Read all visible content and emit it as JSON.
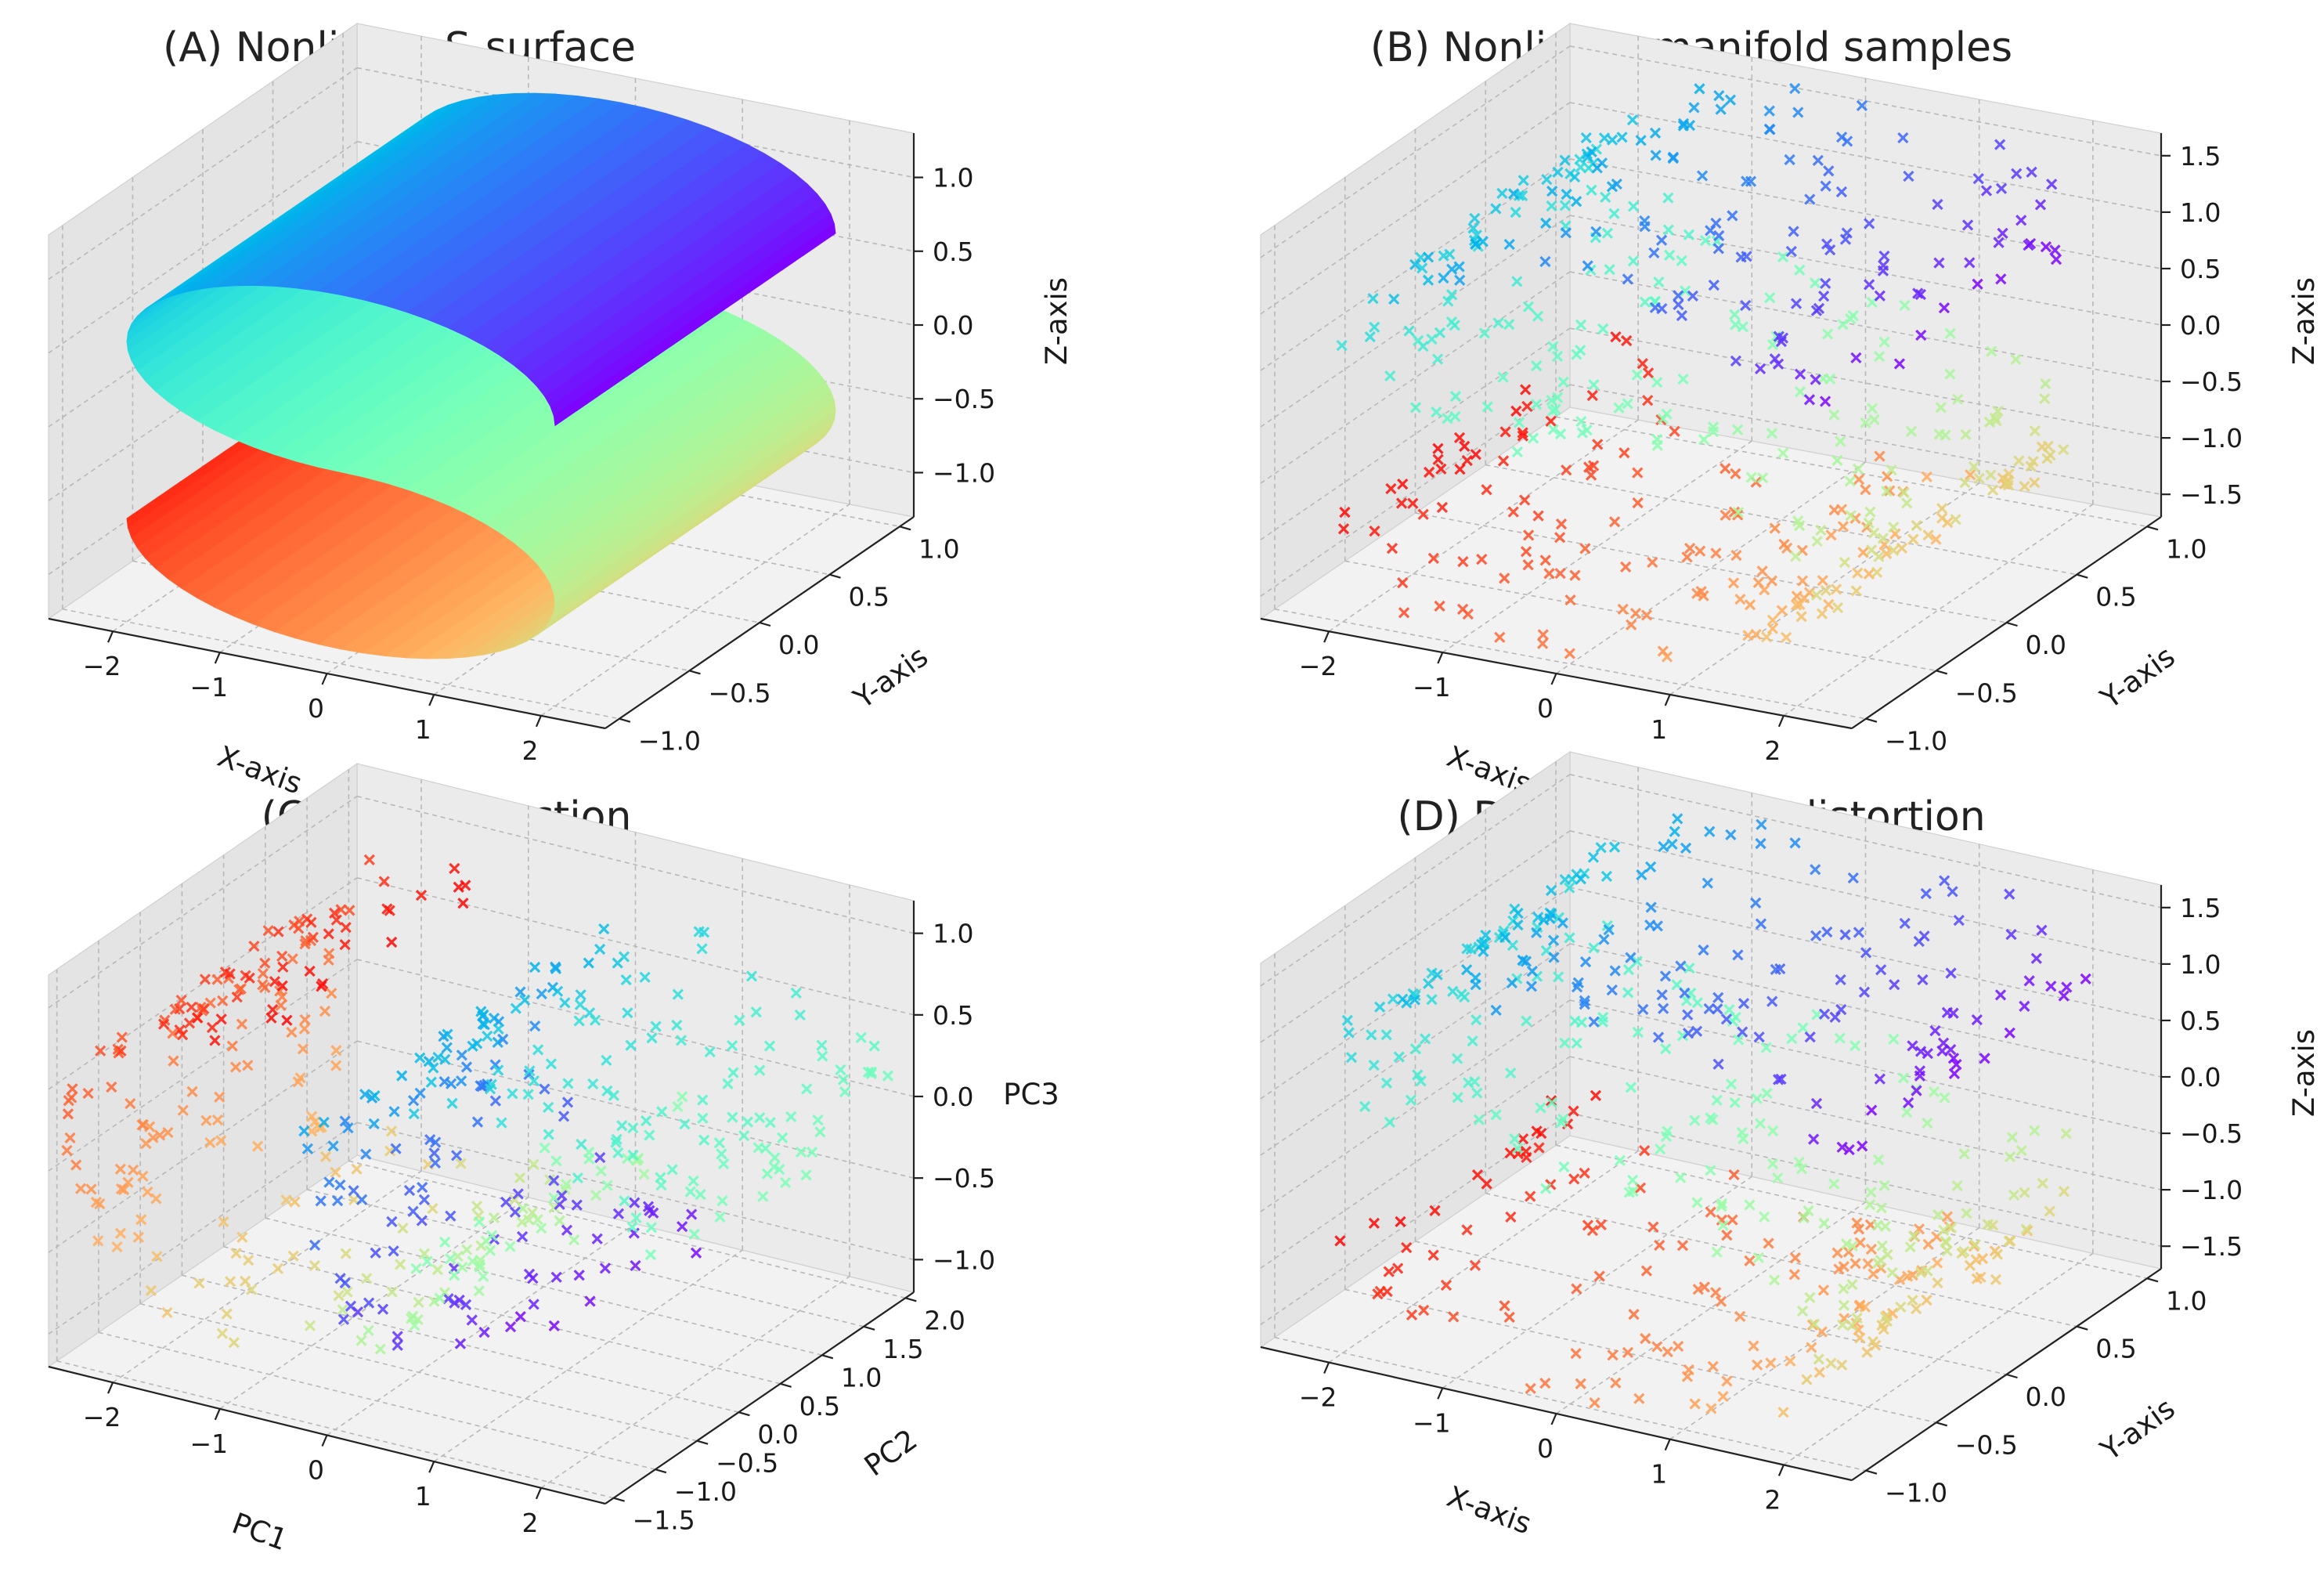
{
  "chart_data": [
    {
      "type": "surface",
      "title": "(A) Nonlinear S-surface",
      "xlabel": "X-axis",
      "ylabel": "Y-axis",
      "zlabel": "Z-axis",
      "xlim": [
        -2.6,
        2.6
      ],
      "ylim": [
        -1.1,
        1.1
      ],
      "zlim": [
        -1.3,
        1.3
      ],
      "xticks": [
        "−2",
        "−1",
        "0",
        "1",
        "2"
      ],
      "xtick_values": [
        -2,
        -1,
        0,
        1,
        2
      ],
      "yticks": [
        "−1.0",
        "−0.5",
        "0.0",
        "0.5",
        "1.0"
      ],
      "ytick_values": [
        -1,
        -0.5,
        0,
        0.5,
        1
      ],
      "zticks": [
        "−1.0",
        "−0.5",
        "0.0",
        "0.5",
        "1.0"
      ],
      "ztick_values": [
        -1,
        -0.5,
        0,
        0.5,
        1
      ],
      "surface": "S-curve: x = sin(t), z = sign(t)·(cos(t) − 1), t ∈ [−3π/2, 3π/2], y ∈ [−1, 1]",
      "colormap": "rainbow",
      "grid": true
    },
    {
      "type": "scatter3d",
      "title": "(B) Nonlinear manifold samples",
      "xlabel": "X-axis",
      "ylabel": "Y-axis",
      "zlabel": "Z-axis",
      "xlim": [
        -2.6,
        2.6
      ],
      "ylim": [
        -1.1,
        1.1
      ],
      "zlim": [
        -1.7,
        1.7
      ],
      "xticks": [
        "−2",
        "−1",
        "0",
        "1",
        "2"
      ],
      "xtick_values": [
        -2,
        -1,
        0,
        1,
        2
      ],
      "yticks": [
        "−1.0",
        "−0.5",
        "0.0",
        "0.5",
        "1.0"
      ],
      "ytick_values": [
        -1,
        -0.5,
        0,
        0.5,
        1
      ],
      "zticks": [
        "−1.5",
        "−1.0",
        "−0.5",
        "0.0",
        "0.5",
        "1.0",
        "1.5"
      ],
      "ztick_values": [
        -1.5,
        -1,
        -0.5,
        0,
        0.5,
        1,
        1.5
      ],
      "n_points": 500,
      "marker": "x",
      "colormap": "rainbow",
      "grid": true
    },
    {
      "type": "scatter3d",
      "title": "(C) PCA projection",
      "xlabel": "PC1",
      "ylabel": "PC2",
      "zlabel": "PC3",
      "xlim": [
        -2.6,
        2.6
      ],
      "ylim": [
        -1.6,
        2.1
      ],
      "zlim": [
        -1.2,
        1.2
      ],
      "xticks": [
        "−2",
        "−1",
        "0",
        "1",
        "2"
      ],
      "xtick_values": [
        -2,
        -1,
        0,
        1,
        2
      ],
      "yticks": [
        "−1.5",
        "−1.0",
        "−0.5",
        "0.0",
        "0.5",
        "1.0",
        "1.5",
        "2.0"
      ],
      "ytick_values": [
        -1.5,
        -1,
        -0.5,
        0,
        0.5,
        1,
        1.5,
        2
      ],
      "zticks": [
        "−1.0",
        "−0.5",
        "0.0",
        "0.5",
        "1.0"
      ],
      "ztick_values": [
        -1,
        -0.5,
        0,
        0.5,
        1
      ],
      "n_points": 500,
      "marker": "x",
      "colormap": "rainbow",
      "grid": true
    },
    {
      "type": "scatter3d",
      "title": "(D) Dose × Variety distortion",
      "xlabel": "X-axis",
      "ylabel": "Y-axis",
      "zlabel": "Z-axis",
      "xlim": [
        -2.6,
        2.6
      ],
      "ylim": [
        -1.1,
        1.1
      ],
      "zlim": [
        -1.7,
        1.7
      ],
      "xticks": [
        "−2",
        "−1",
        "0",
        "1",
        "2"
      ],
      "xtick_values": [
        -2,
        -1,
        0,
        1,
        2
      ],
      "yticks": [
        "−1.0",
        "−0.5",
        "0.0",
        "0.5",
        "1.0"
      ],
      "ytick_values": [
        -1,
        -0.5,
        0,
        0.5,
        1
      ],
      "zticks": [
        "−1.5",
        "−1.0",
        "−0.5",
        "0.0",
        "0.5",
        "1.0",
        "1.5"
      ],
      "ztick_values": [
        -1.5,
        -1,
        -0.5,
        0,
        0.5,
        1,
        1.5
      ],
      "n_points": 500,
      "marker": "x",
      "colormap": "rainbow",
      "grid": true
    }
  ]
}
